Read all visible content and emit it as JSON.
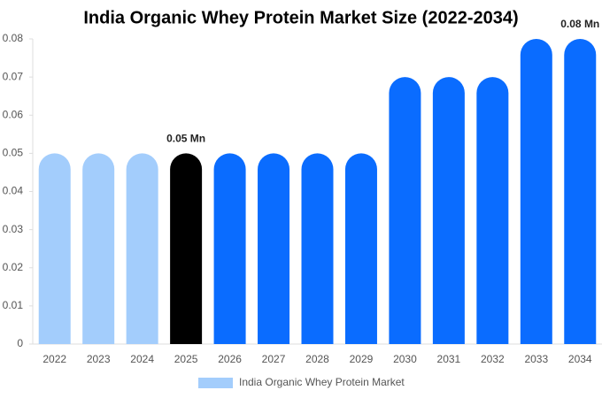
{
  "chart_data": {
    "type": "bar",
    "title": "India Organic Whey Protein Market Size (2022-2034)",
    "categories": [
      "2022",
      "2023",
      "2024",
      "2025",
      "2026",
      "2027",
      "2028",
      "2029",
      "2030",
      "2031",
      "2032",
      "2033",
      "2034"
    ],
    "series": [
      {
        "name": "India Organic Whey Protein Market",
        "color": "#a3cdfc",
        "values": [
          0.05,
          0.05,
          0.05,
          0.05,
          0.05,
          0.05,
          0.05,
          0.05,
          0.07,
          0.07,
          0.07,
          0.08,
          0.08
        ],
        "colors": [
          "#a3cdfc",
          "#a3cdfc",
          "#a3cdfc",
          "#000000",
          "#0a6cff",
          "#0a6cff",
          "#0a6cff",
          "#0a6cff",
          "#0a6cff",
          "#0a6cff",
          "#0a6cff",
          "#0a6cff",
          "#0a6cff"
        ],
        "value_labels": [
          null,
          null,
          null,
          "0.05 Mn",
          null,
          null,
          null,
          null,
          null,
          null,
          null,
          null,
          "0.08 Mn"
        ]
      }
    ],
    "ylim": [
      0,
      0.08
    ],
    "yticks": [
      0,
      0.01,
      0.02,
      0.03,
      0.04,
      0.05,
      0.06,
      0.07,
      0.08
    ],
    "grid": false
  }
}
